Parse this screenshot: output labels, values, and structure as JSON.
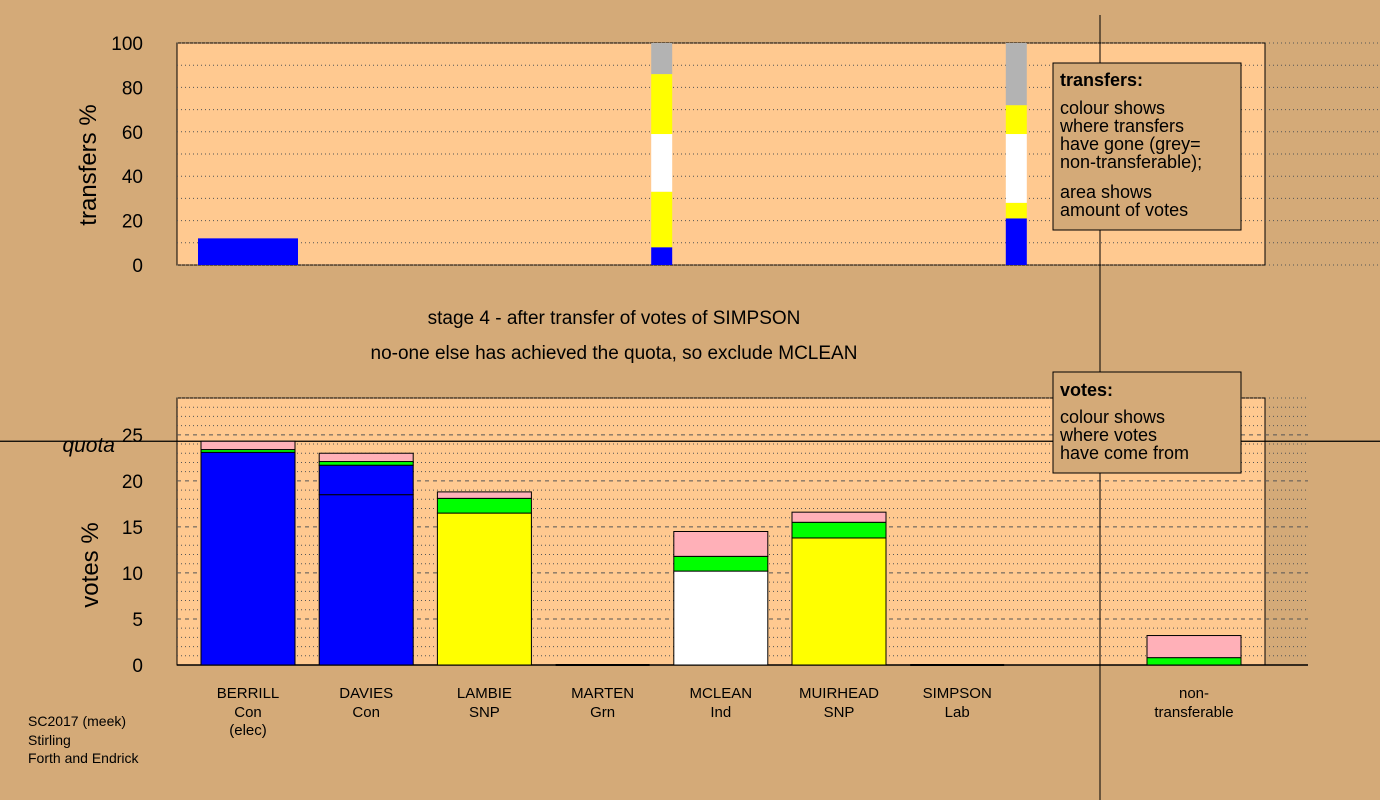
{
  "chart_data": [
    {
      "type": "bar",
      "stacked": true,
      "panel": "transfers",
      "ylabel": "transfers %",
      "ylim": [
        0,
        100
      ],
      "yticks": [
        0,
        20,
        40,
        60,
        80,
        100
      ],
      "grid": true,
      "segment_order": [
        "Con",
        "SNP",
        "Ind",
        "SNP",
        "non-transferable"
      ],
      "bars": [
        {
          "candidate": "BERRILL",
          "column": 0,
          "width_note": "wide",
          "segments": [
            {
              "colour": "#0000ff",
              "value": 12
            }
          ]
        },
        {
          "candidate": "MARTEN",
          "column": 3.5,
          "segments": [
            {
              "colour": "#0000ff",
              "value": 8
            },
            {
              "colour": "#ffff00",
              "value": 25
            },
            {
              "colour": "#ffffff",
              "value": 26
            },
            {
              "colour": "#ffff00",
              "value": 27
            },
            {
              "colour": "#b3b3b3",
              "value": 14
            }
          ]
        },
        {
          "candidate": "SIMPSON",
          "column": 6.5,
          "segments": [
            {
              "colour": "#0000ff",
              "value": 21
            },
            {
              "colour": "#ffff00",
              "value": 7
            },
            {
              "colour": "#ffffff",
              "value": 31
            },
            {
              "colour": "#ffff00",
              "value": 13
            },
            {
              "colour": "#b3b3b3",
              "value": 28
            }
          ]
        }
      ],
      "legend": {
        "title": "transfers:",
        "lines": [
          "colour shows",
          "where transfers",
          "have gone (grey=",
          "non-transferable);"
        ],
        "lines2": [
          "area shows",
          "amount of votes"
        ]
      }
    },
    {
      "type": "bar",
      "stacked": true,
      "panel": "votes",
      "ylabel": "votes %",
      "ylim": [
        0,
        29
      ],
      "yticks": [
        0,
        5,
        10,
        15,
        20,
        25
      ],
      "quota": 24.3,
      "quota_label": "quota",
      "grid": true,
      "categories": [
        "BERRILL",
        "DAVIES",
        "LAMBIE",
        "MARTEN",
        "MCLEAN",
        "MUIRHEAD",
        "SIMPSON"
      ],
      "parties": [
        "Con",
        "Con",
        "SNP",
        "Grn",
        "Ind",
        "SNP",
        "Lab"
      ],
      "notes": [
        "(elec)",
        "",
        "",
        "",
        "",
        "",
        ""
      ],
      "bars": [
        {
          "segments": [
            {
              "colour": "#0000ff",
              "value": 23.1
            },
            {
              "colour": "#00ff00",
              "value": 0.3
            },
            {
              "colour": "#ffb0b8",
              "value": 0.9
            }
          ]
        },
        {
          "segments": [
            {
              "colour": "#0000ff",
              "value": 18.5
            },
            {
              "colour": "#0000ff",
              "value": 3.2
            },
            {
              "colour": "#00ff00",
              "value": 0.4
            },
            {
              "colour": "#ffb0b8",
              "value": 0.9
            }
          ]
        },
        {
          "segments": [
            {
              "colour": "#ffff00",
              "value": 16.5
            },
            {
              "colour": "#00ff00",
              "value": 1.6
            },
            {
              "colour": "#ffb0b8",
              "value": 0.7
            }
          ]
        },
        {
          "segments": []
        },
        {
          "segments": [
            {
              "colour": "#ffffff",
              "value": 10.2
            },
            {
              "colour": "#00ff00",
              "value": 1.6
            },
            {
              "colour": "#ffb0b8",
              "value": 2.7
            }
          ]
        },
        {
          "segments": [
            {
              "colour": "#ffff00",
              "value": 13.8
            },
            {
              "colour": "#00ff00",
              "value": 1.7
            },
            {
              "colour": "#ffb0b8",
              "value": 1.1
            }
          ]
        },
        {
          "segments": []
        }
      ],
      "nontransferable": {
        "label_line1": "non-",
        "label_line2": "transferable",
        "segments": [
          {
            "colour": "#00ff00",
            "value": 0.8
          },
          {
            "colour": "#ffb0b8",
            "value": 2.4
          }
        ]
      },
      "legend": {
        "title": "votes:",
        "lines": [
          "colour shows",
          "where votes",
          "have come from"
        ]
      }
    }
  ],
  "stage": {
    "line1": "stage 4 - after transfer of votes of SIMPSON",
    "line2": "no-one else has achieved the quota, so exclude MCLEAN"
  },
  "footer": {
    "line1": "SC2017 (meek)",
    "line2": "Stirling",
    "line3": "Forth and Endrick"
  },
  "colours": {
    "background": "#d4aa78",
    "plot_bg": "#ffc990",
    "Con": "#0000ff",
    "SNP": "#ffff00",
    "Ind": "#ffffff",
    "Grn": "#00ff00",
    "Lab": "#ffb0b8",
    "nontransferable": "#b3b3b3"
  }
}
